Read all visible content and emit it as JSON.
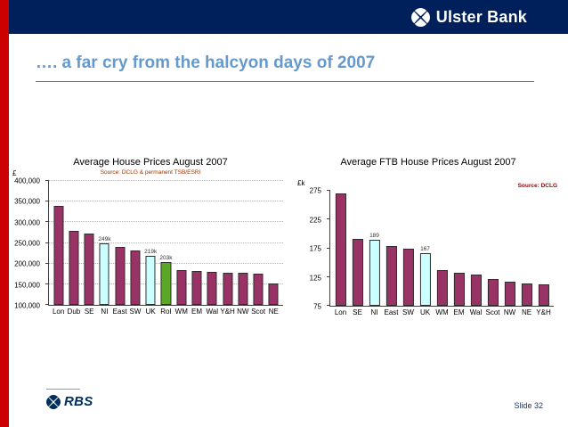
{
  "colors": {
    "navy": "#00205B",
    "red_stripe": "#CC0000",
    "title_blue": "#6699CC",
    "bar_magenta": "#993366",
    "bar_cyan": "#CCFFFF",
    "bar_green": "#5BA829"
  },
  "header": {
    "brand": "Ulster Bank"
  },
  "title": "…. a far cry from the halcyon days of 2007",
  "footer": {
    "brand": "RBS",
    "slide_number": "Slide 32"
  },
  "chart_data": [
    {
      "type": "bar",
      "title": "Average House Prices August 2007",
      "source": "Source: DCLG & permanent TSB/ESRI",
      "ylabel": "£",
      "ylim": [
        100000,
        400000
      ],
      "grid": true,
      "yticks": [
        {
          "value": 400000,
          "label": "400,000"
        },
        {
          "value": 350000,
          "label": "350,000"
        },
        {
          "value": 300000,
          "label": "300,000"
        },
        {
          "value": 250000,
          "label": "250,000"
        },
        {
          "value": 200000,
          "label": "200,000"
        },
        {
          "value": 150000,
          "label": "150,000"
        },
        {
          "value": 100000,
          "label": "100,000"
        }
      ],
      "categories": [
        "Lon",
        "Dub",
        "SE",
        "NI",
        "East",
        "SW",
        "UK",
        "RoI",
        "WM",
        "EM",
        "Wal",
        "Y&H",
        "NW",
        "Scot",
        "NE"
      ],
      "values": [
        340000,
        280000,
        273000,
        249000,
        240000,
        232000,
        219000,
        203000,
        185000,
        182000,
        180000,
        178000,
        177000,
        175000,
        152000
      ],
      "bar_colors": [
        "magenta",
        "magenta",
        "magenta",
        "cyan",
        "magenta",
        "magenta",
        "cyan",
        "green",
        "magenta",
        "magenta",
        "magenta",
        "magenta",
        "magenta",
        "magenta",
        "magenta"
      ],
      "bar_labels": [
        null,
        null,
        null,
        "249k",
        null,
        null,
        "219k",
        "203k",
        null,
        null,
        null,
        null,
        null,
        null,
        null
      ]
    },
    {
      "type": "bar",
      "title": "Average FTB House Prices August 2007",
      "source": "Source: DCLG",
      "ylabel": "£k",
      "ylim": [
        75,
        275
      ],
      "grid": false,
      "yticks": [
        {
          "value": 275,
          "label": "275"
        },
        {
          "value": 225,
          "label": "225"
        },
        {
          "value": 175,
          "label": "175"
        },
        {
          "value": 125,
          "label": "125"
        },
        {
          "value": 75,
          "label": "75"
        }
      ],
      "categories": [
        "Lon",
        "SE",
        "NI",
        "East",
        "SW",
        "UK",
        "WM",
        "EM",
        "Wal",
        "Scot",
        "NW",
        "NE",
        "Y&H"
      ],
      "values": [
        270,
        192,
        189,
        179,
        174,
        167,
        137,
        132,
        130,
        122,
        117,
        114,
        112
      ],
      "bar_colors": [
        "magenta",
        "magenta",
        "cyan",
        "magenta",
        "magenta",
        "cyan",
        "magenta",
        "magenta",
        "magenta",
        "magenta",
        "magenta",
        "magenta",
        "magenta"
      ],
      "bar_labels": [
        null,
        null,
        "189",
        null,
        null,
        "167",
        null,
        null,
        null,
        null,
        null,
        null,
        null
      ]
    }
  ]
}
